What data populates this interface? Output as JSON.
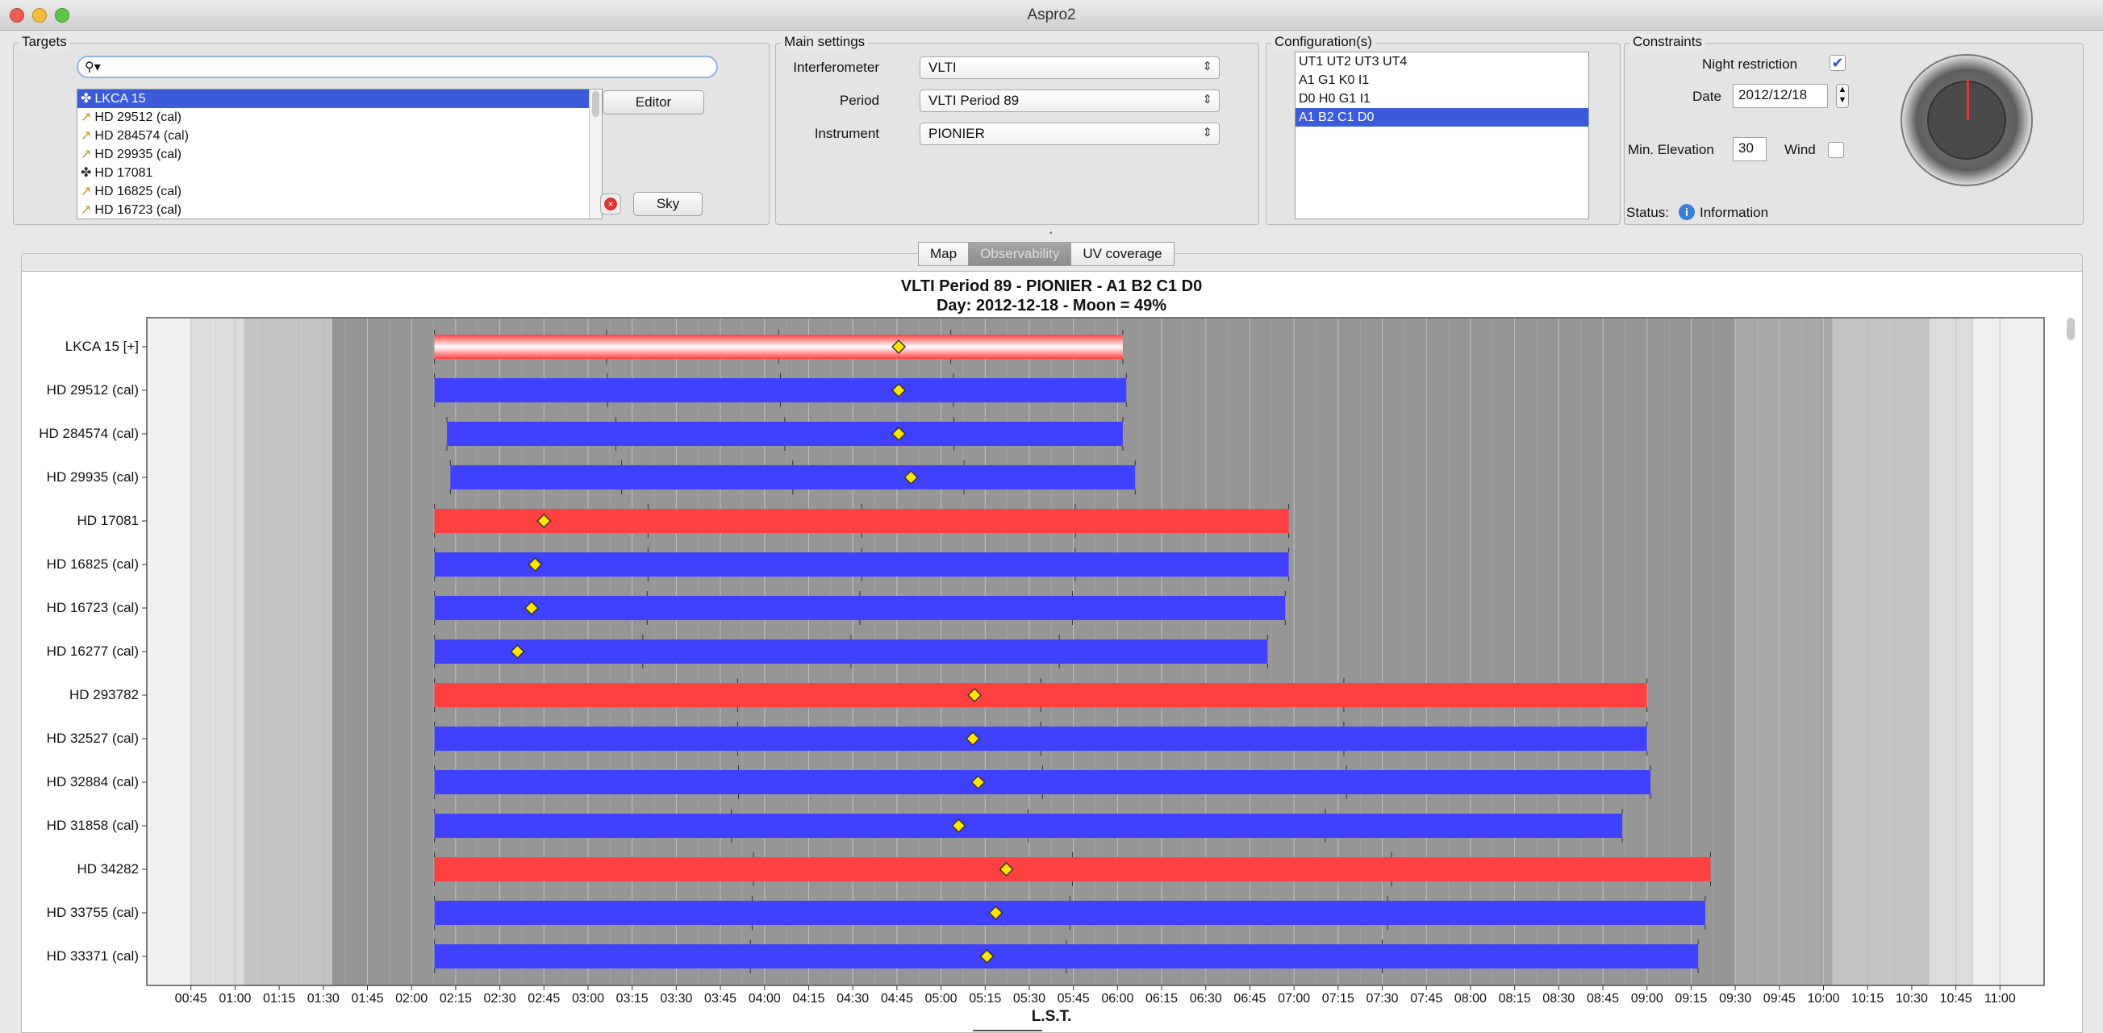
{
  "window": {
    "title": "Aspro2"
  },
  "targets": {
    "legend": "Targets",
    "search_value": "",
    "list": [
      {
        "name": "LKCA 15",
        "kind": "science",
        "selected": true
      },
      {
        "name": "HD 29512 (cal)",
        "kind": "calibrator"
      },
      {
        "name": "HD 284574 (cal)",
        "kind": "calibrator"
      },
      {
        "name": "HD 29935 (cal)",
        "kind": "calibrator"
      },
      {
        "name": "HD 17081",
        "kind": "science"
      },
      {
        "name": "HD 16825 (cal)",
        "kind": "calibrator"
      },
      {
        "name": "HD 16723 (cal)",
        "kind": "calibrator"
      }
    ],
    "editor_label": "Editor",
    "sky_label": "Sky"
  },
  "main_settings": {
    "legend": "Main settings",
    "interferometer_label": "Interferometer",
    "interferometer_value": "VLTI",
    "period_label": "Period",
    "period_value": "VLTI Period 89",
    "instrument_label": "Instrument",
    "instrument_value": "PIONIER"
  },
  "configurations": {
    "legend": "Configuration(s)",
    "items": [
      "UT1 UT2 UT3 UT4",
      "A1 G1 K0 I1",
      "D0 H0 G1 I1",
      "A1 B2 C1 D0"
    ],
    "selected_index": 3
  },
  "constraints": {
    "legend": "Constraints",
    "night_restriction_label": "Night restriction",
    "night_restriction_checked": true,
    "date_label": "Date",
    "date_value": "2012/12/18",
    "min_elevation_label": "Min. Elevation",
    "min_elevation_value": "30",
    "wind_label": "Wind",
    "wind_checked": false,
    "status_label": "Status:",
    "status_value": "Information"
  },
  "tabs": [
    {
      "label": "Map",
      "active": false
    },
    {
      "label": "Observability",
      "active": true
    },
    {
      "label": "UV coverage",
      "active": false
    }
  ],
  "chart_data": {
    "type": "gantt",
    "title": "VLTI Period 89 - PIONIER - A1 B2 C1 D0",
    "subtitle": "Day: 2012-12-18 - Moon = 49%",
    "xlabel": "L.S.T.",
    "x_ticks": [
      "00:45",
      "01:00",
      "01:15",
      "01:30",
      "01:45",
      "02:00",
      "02:15",
      "02:30",
      "02:45",
      "03:00",
      "03:15",
      "03:30",
      "03:45",
      "04:00",
      "04:15",
      "04:30",
      "04:45",
      "05:00",
      "05:15",
      "05:30",
      "05:45",
      "06:00",
      "06:15",
      "06:30",
      "06:45",
      "07:00",
      "07:15",
      "07:30",
      "07:45",
      "08:00",
      "08:15",
      "08:30",
      "08:45",
      "09:00",
      "09:15",
      "09:30",
      "09:45",
      "10:00",
      "10:15",
      "10:30",
      "10:45",
      "11:00"
    ],
    "x_range_hours": [
      0.5,
      11.25
    ],
    "grid": true,
    "night_shading": [
      {
        "from": 0.5,
        "to": 0.75,
        "level": "day"
      },
      {
        "from": 0.75,
        "to": 1.05,
        "level": "twilight-1"
      },
      {
        "from": 1.05,
        "to": 1.55,
        "level": "twilight-2"
      },
      {
        "from": 1.55,
        "to": 9.5,
        "level": "night"
      },
      {
        "from": 9.5,
        "to": 10.05,
        "level": "twilight-3"
      },
      {
        "from": 10.05,
        "to": 10.6,
        "level": "twilight-2"
      },
      {
        "from": 10.6,
        "to": 10.85,
        "level": "twilight-1"
      },
      {
        "from": 10.85,
        "to": 11.25,
        "level": "day"
      }
    ],
    "rows": [
      {
        "label": "LKCA 15 [+]",
        "start": 2.13,
        "end": 6.03,
        "transit": 4.76,
        "color": "#ff8080",
        "style": "selected"
      },
      {
        "label": "HD 29512 (cal)",
        "start": 2.13,
        "end": 6.05,
        "transit": 4.76,
        "color": "#4040ff"
      },
      {
        "label": "HD 284574 (cal)",
        "start": 2.2,
        "end": 6.03,
        "transit": 4.76,
        "color": "#4040ff"
      },
      {
        "label": "HD 29935 (cal)",
        "start": 2.22,
        "end": 6.1,
        "transit": 4.83,
        "color": "#4040ff"
      },
      {
        "label": "HD 17081",
        "start": 2.13,
        "end": 6.97,
        "transit": 2.75,
        "color": "#ff4040"
      },
      {
        "label": "HD 16825 (cal)",
        "start": 2.13,
        "end": 6.97,
        "transit": 2.7,
        "color": "#4040ff"
      },
      {
        "label": "HD 16723 (cal)",
        "start": 2.13,
        "end": 6.95,
        "transit": 2.68,
        "color": "#4040ff"
      },
      {
        "label": "HD 16277 (cal)",
        "start": 2.13,
        "end": 6.85,
        "transit": 2.6,
        "color": "#4040ff"
      },
      {
        "label": "HD 293782",
        "start": 2.13,
        "end": 9.0,
        "transit": 5.19,
        "color": "#ff4040"
      },
      {
        "label": "HD 32527 (cal)",
        "start": 2.13,
        "end": 9.0,
        "transit": 5.18,
        "color": "#4040ff"
      },
      {
        "label": "HD 32884 (cal)",
        "start": 2.13,
        "end": 9.02,
        "transit": 5.21,
        "color": "#4040ff"
      },
      {
        "label": "HD 31858 (cal)",
        "start": 2.13,
        "end": 8.86,
        "transit": 5.1,
        "color": "#4040ff"
      },
      {
        "label": "HD 34282",
        "start": 2.13,
        "end": 9.36,
        "transit": 5.37,
        "color": "#ff4040"
      },
      {
        "label": "HD 33755 (cal)",
        "start": 2.13,
        "end": 9.33,
        "transit": 5.31,
        "color": "#4040ff"
      },
      {
        "label": "HD 33371 (cal)",
        "start": 2.13,
        "end": 9.29,
        "transit": 5.26,
        "color": "#4040ff"
      }
    ]
  }
}
